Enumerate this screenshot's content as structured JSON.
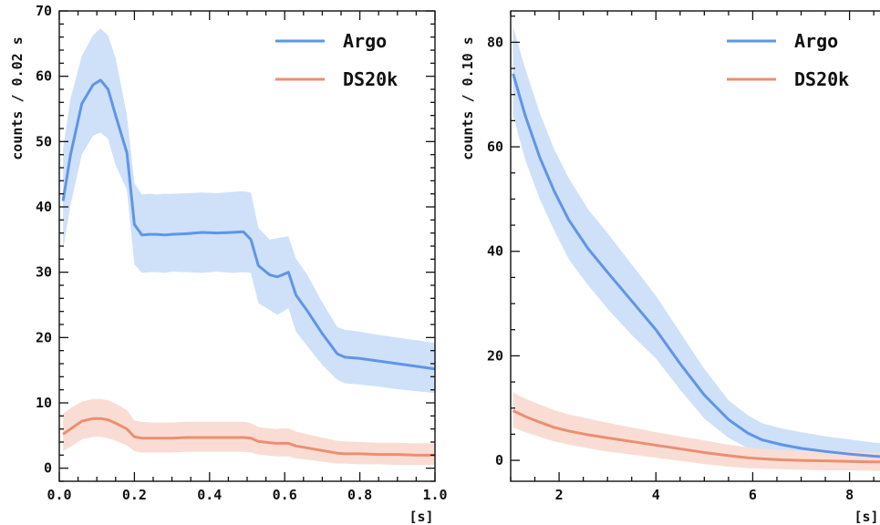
{
  "colors": {
    "argo": "#5f95e6",
    "argo_band": "#cfe0f9",
    "ds20k": "#ec8e72",
    "ds20k_band": "#f9ddd4",
    "axis": "#111111"
  },
  "chart_data": [
    {
      "type": "line",
      "xlabel": "[s]",
      "ylabel": "counts / 0.02 s",
      "xlim": [
        0.0,
        1.0
      ],
      "ylim": [
        -2,
        70
      ],
      "xticks": [
        "0.0",
        "0.2",
        "0.4",
        "0.6",
        "0.8",
        "1.0"
      ],
      "yticks": [
        "0",
        "10",
        "20",
        "30",
        "40",
        "50",
        "60",
        "70"
      ],
      "legend_position": "top-right",
      "series": [
        {
          "name": "Argo",
          "color_key": "argo",
          "x": [
            0.01,
            0.03,
            0.06,
            0.09,
            0.11,
            0.13,
            0.15,
            0.18,
            0.2,
            0.22,
            0.24,
            0.26,
            0.28,
            0.3,
            0.34,
            0.38,
            0.42,
            0.46,
            0.49,
            0.51,
            0.53,
            0.56,
            0.58,
            0.59,
            0.61,
            0.63,
            0.66,
            0.7,
            0.74,
            0.76,
            0.8,
            0.85,
            0.9,
            0.95,
            1.0
          ],
          "y": [
            40.9,
            48.0,
            55.8,
            58.7,
            59.4,
            58.0,
            54.0,
            48.3,
            37.3,
            35.7,
            35.8,
            35.8,
            35.7,
            35.8,
            35.9,
            36.1,
            36.0,
            36.1,
            36.2,
            35.0,
            31.0,
            29.6,
            29.3,
            29.5,
            30.0,
            26.5,
            24.1,
            20.6,
            17.5,
            17.0,
            16.8,
            16.4,
            16.0,
            15.6,
            15.2
          ],
          "upper": [
            48.9,
            56.6,
            63.1,
            66.3,
            67.3,
            66.2,
            62.8,
            54.0,
            43.6,
            41.9,
            42.0,
            41.9,
            42.0,
            42.0,
            42.1,
            42.2,
            42.1,
            42.3,
            42.4,
            42.2,
            36.8,
            35.0,
            35.2,
            35.3,
            35.5,
            32.1,
            29.6,
            25.4,
            21.6,
            21.2,
            20.9,
            20.4,
            20.0,
            19.6,
            19.2
          ],
          "lower": [
            33.5,
            40.3,
            48.0,
            50.9,
            51.4,
            50.4,
            46.4,
            42.6,
            31.2,
            29.9,
            30.0,
            30.0,
            29.9,
            30.1,
            30.0,
            29.9,
            30.1,
            29.9,
            30.0,
            29.9,
            25.3,
            24.2,
            23.5,
            23.8,
            24.5,
            20.9,
            18.7,
            15.8,
            13.5,
            13.0,
            12.8,
            12.5,
            12.1,
            11.8,
            11.5
          ]
        },
        {
          "name": "DS20k",
          "color_key": "ds20k",
          "x": [
            0.01,
            0.03,
            0.06,
            0.09,
            0.11,
            0.13,
            0.15,
            0.18,
            0.2,
            0.22,
            0.24,
            0.26,
            0.28,
            0.3,
            0.34,
            0.38,
            0.42,
            0.46,
            0.49,
            0.51,
            0.53,
            0.56,
            0.58,
            0.59,
            0.61,
            0.63,
            0.66,
            0.7,
            0.74,
            0.76,
            0.8,
            0.85,
            0.9,
            0.95,
            1.0
          ],
          "y": [
            5.2,
            6.0,
            7.2,
            7.6,
            7.6,
            7.4,
            6.9,
            6.0,
            4.8,
            4.6,
            4.6,
            4.6,
            4.6,
            4.6,
            4.7,
            4.7,
            4.7,
            4.7,
            4.7,
            4.6,
            4.1,
            3.9,
            3.8,
            3.8,
            3.8,
            3.4,
            3.1,
            2.7,
            2.3,
            2.2,
            2.2,
            2.1,
            2.1,
            2.0,
            2.0
          ],
          "upper": [
            8.3,
            9.2,
            10.2,
            10.6,
            10.6,
            10.4,
            9.9,
            8.9,
            7.3,
            7.1,
            7.0,
            7.0,
            7.0,
            7.0,
            7.1,
            7.1,
            7.1,
            7.1,
            7.1,
            6.9,
            6.3,
            6.1,
            6.0,
            6.1,
            6.1,
            5.6,
            5.2,
            4.7,
            4.2,
            4.1,
            4.0,
            3.9,
            3.9,
            3.8,
            3.8
          ],
          "lower": [
            2.6,
            3.3,
            4.4,
            4.8,
            4.8,
            4.6,
            4.2,
            3.5,
            2.6,
            2.4,
            2.4,
            2.4,
            2.4,
            2.4,
            2.5,
            2.5,
            2.5,
            2.5,
            2.5,
            2.4,
            2.1,
            1.9,
            1.8,
            1.8,
            1.8,
            1.5,
            1.3,
            1.0,
            0.7,
            0.7,
            0.6,
            0.6,
            0.5,
            0.5,
            0.5
          ]
        }
      ]
    },
    {
      "type": "line",
      "xlabel": "[s]",
      "ylabel": "counts / 0.10 s",
      "xlim": [
        1.0,
        9.1
      ],
      "ylim": [
        -4,
        86
      ],
      "xticks": [
        "2",
        "4",
        "6",
        "8"
      ],
      "yticks": [
        "0",
        "20",
        "40",
        "60",
        "80"
      ],
      "legend_position": "top-right",
      "series": [
        {
          "name": "Argo",
          "color_key": "argo",
          "x": [
            1.05,
            1.3,
            1.6,
            1.9,
            2.2,
            2.6,
            3.0,
            3.5,
            4.0,
            4.5,
            5.0,
            5.5,
            5.9,
            6.2,
            6.6,
            7.0,
            7.5,
            8.0,
            8.5,
            9.1
          ],
          "y": [
            74,
            66,
            58,
            51.5,
            46,
            40.5,
            36,
            30.5,
            25,
            18.5,
            12.5,
            7.8,
            5.2,
            3.9,
            3.0,
            2.3,
            1.7,
            1.2,
            0.8,
            0.5
          ],
          "upper": [
            83,
            75,
            66.5,
            59.5,
            54,
            48,
            43.5,
            37.5,
            31.5,
            24.5,
            17.5,
            11.5,
            8.6,
            7.1,
            6.1,
            5.4,
            4.6,
            4.0,
            3.4,
            3.0
          ],
          "lower": [
            66,
            57.5,
            50,
            44,
            38.5,
            33.5,
            29,
            24,
            19.5,
            13.5,
            8,
            4.3,
            2.3,
            1.3,
            0.6,
            0.1,
            -0.3,
            -0.6,
            -0.8,
            -1.0
          ]
        },
        {
          "name": "DS20k",
          "color_key": "ds20k",
          "x": [
            1.05,
            1.3,
            1.6,
            1.9,
            2.2,
            2.6,
            3.0,
            3.5,
            4.0,
            4.5,
            5.0,
            5.5,
            5.9,
            6.2,
            6.6,
            7.0,
            7.5,
            8.0,
            8.5,
            9.1
          ],
          "y": [
            9.5,
            8.4,
            7.3,
            6.3,
            5.6,
            4.9,
            4.3,
            3.6,
            2.9,
            2.2,
            1.5,
            0.9,
            0.5,
            0.3,
            0.1,
            0.0,
            -0.1,
            -0.2,
            -0.3,
            -0.3
          ],
          "upper": [
            13,
            11.8,
            10.7,
            9.6,
            8.8,
            8.0,
            7.2,
            6.3,
            5.4,
            4.6,
            3.8,
            3.0,
            2.5,
            2.2,
            2.0,
            1.8,
            1.7,
            1.6,
            1.5,
            1.5
          ],
          "lower": [
            6.3,
            5.4,
            4.5,
            3.6,
            3.0,
            2.3,
            1.7,
            1.1,
            0.5,
            -0.1,
            -0.7,
            -1.2,
            -1.5,
            -1.6,
            -1.7,
            -1.8,
            -1.9,
            -1.9,
            -2.0,
            -2.0
          ]
        }
      ]
    }
  ]
}
